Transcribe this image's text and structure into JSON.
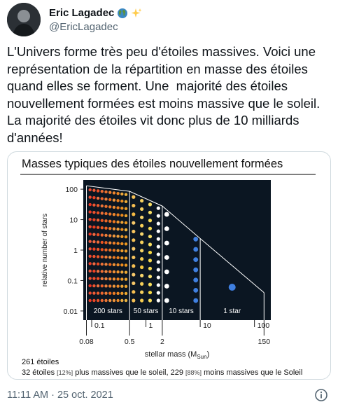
{
  "author": {
    "display_name": "Eric Lagadec",
    "handle": "@EricLagadec",
    "emoji_icons": [
      "globe-icon",
      "sparkles-icon"
    ]
  },
  "tweet": {
    "text": "L'Univers forme très peu d'étoiles massives. Voici une représentation de la répartition en masse des étoiles quand elles se forment. Une  majorité des étoiles nouvellement formées est moins massive que le soleil. La majorité des étoiles vit donc plus de 10 milliards d'années!",
    "timestamp": "11:11 AM · 25 oct. 2021"
  },
  "figure": {
    "title": "Masses typiques des étoiles nouvellement formées",
    "total_label": "261 étoiles",
    "summary": {
      "part1": "32 étoiles",
      "pct1": "[12%]",
      "part2": " plus massives que le soleil, ",
      "part3": "229",
      "pct2": "[88%]",
      "part4": " moins massives que le Soleil"
    }
  },
  "chart_data": {
    "type": "area",
    "xlabel": "stellar mass (M",
    "xlabel_sub": "Sun",
    "xlabel_end": ")",
    "ylabel": "relative number of stars",
    "y_scale": "log",
    "ylim": [
      0.005,
      200
    ],
    "x_ticks": [
      "0.1",
      "1",
      "10",
      "100"
    ],
    "x_ticks_lower": [
      "0.08",
      "0.5",
      "2",
      "150"
    ],
    "y_ticks": [
      "100",
      "10",
      "1",
      "0.1",
      "0.01"
    ],
    "bins": [
      {
        "range": [
          0.08,
          0.5
        ],
        "label": "200 stars",
        "count": 200
      },
      {
        "range": [
          0.5,
          2
        ],
        "label": "50 stars",
        "count": 50
      },
      {
        "range": [
          2,
          10
        ],
        "label": "10 stars",
        "count": 10
      },
      {
        "range": [
          10,
          150
        ],
        "label": "1 star",
        "count": 1
      }
    ],
    "colors": {
      "background": "#0b1622",
      "low_mass": "#e8553a",
      "mid_mass": "#f5c542",
      "sun_like": "#ffffff",
      "high_mass": "#3f7fe0"
    }
  }
}
